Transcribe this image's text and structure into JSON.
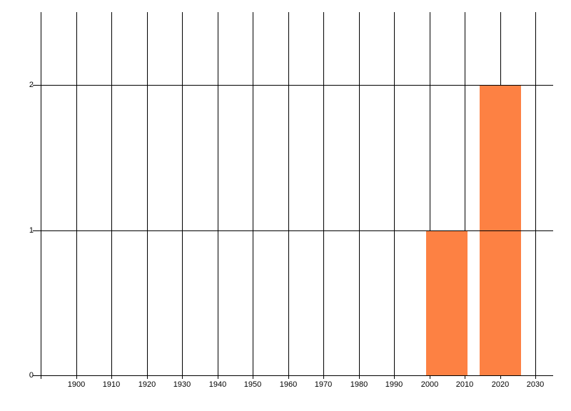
{
  "chart": {
    "background_color": "#ffffff",
    "grid_color": "#000000",
    "label_color": "#000000",
    "bar_color": "#fd8143"
  },
  "chart_data": {
    "type": "bar",
    "title": "",
    "xlabel": "",
    "ylabel": "",
    "points": [
      {
        "x": 2005,
        "y": 1
      },
      {
        "x": 2020,
        "y": 2
      }
    ],
    "bar_width_years": 11.7,
    "x_gridline_years": [
      1890,
      1900,
      1910,
      1920,
      1930,
      1940,
      1950,
      1960,
      1970,
      1980,
      1990,
      2000,
      2010,
      2020,
      2030
    ],
    "x_tick_labels": [
      "1900",
      "1910",
      "1920",
      "1930",
      "1940",
      "1950",
      "1960",
      "1970",
      "1980",
      "1990",
      "2000",
      "2010",
      "2020",
      "2030"
    ],
    "y_tick_labels": [
      "0",
      "1",
      "2"
    ],
    "y_tick_values": [
      0,
      1,
      2
    ],
    "xlim": [
      1890,
      2035
    ],
    "ylim": [
      0,
      2.5
    ],
    "grid": true,
    "legend_position": "none"
  }
}
